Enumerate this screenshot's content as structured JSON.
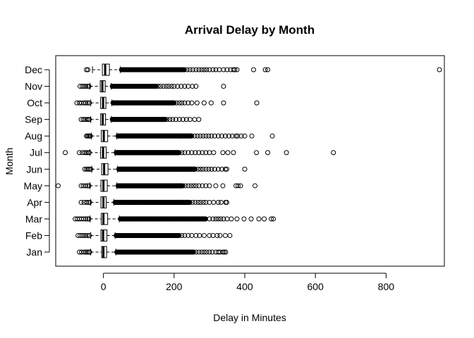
{
  "chart_data": {
    "type": "boxplot",
    "orientation": "horizontal",
    "title": "Arrival Delay by Month",
    "xlabel": "Delay in Minutes",
    "ylabel": "Month",
    "xlim": [
      -135,
      965
    ],
    "xticks": [
      0,
      200,
      400,
      600,
      800
    ],
    "grid": false,
    "legend": "none",
    "categories": [
      "Jan",
      "Feb",
      "Mar",
      "Apr",
      "May",
      "Jun",
      "Jul",
      "Aug",
      "Sep",
      "Oct",
      "Nov",
      "Dec"
    ],
    "boxes": [
      {
        "q1": -5,
        "median": 0,
        "q3": 9,
        "whisker_low": -36,
        "whisker_high": 35,
        "outliers_low": [
          -68,
          -62,
          -55,
          -50,
          -46,
          -42,
          -39
        ],
        "dense_high_end": 255,
        "outliers_high": [
          262,
          270,
          278,
          285,
          292,
          300,
          308,
          318,
          325,
          330,
          338,
          342,
          346
        ]
      },
      {
        "q1": -7,
        "median": -1,
        "q3": 10,
        "whisker_low": -36,
        "whisker_high": 33,
        "outliers_low": [
          -72,
          -66,
          -60,
          -55,
          -50,
          -45,
          -40
        ],
        "dense_high_end": 215,
        "outliers_high": [
          222,
          230,
          240,
          250,
          262,
          272,
          285,
          300,
          310,
          322,
          330,
          345,
          358
        ]
      },
      {
        "q1": -6,
        "median": 0,
        "q3": 12,
        "whisker_low": -38,
        "whisker_high": 45,
        "outliers_low": [
          -80,
          -74,
          -68,
          -62,
          -56,
          -50,
          -45,
          -41
        ],
        "dense_high_end": 290,
        "outliers_high": [
          300,
          310,
          318,
          325,
          332,
          340,
          350,
          362,
          378,
          398,
          418,
          440,
          455,
          475,
          481
        ]
      },
      {
        "q1": -7,
        "median": 0,
        "q3": 8,
        "whisker_low": -36,
        "whisker_high": 30,
        "outliers_low": [
          -63,
          -55,
          -48,
          -43,
          -39
        ],
        "dense_high_end": 245,
        "outliers_high": [
          252,
          260,
          268,
          275,
          283,
          290,
          300,
          312,
          325,
          333,
          346,
          349
        ]
      },
      {
        "q1": -7,
        "median": 0,
        "q3": 11,
        "whisker_low": -38,
        "whisker_high": 38,
        "outliers_low": [
          -128,
          -63,
          -57,
          -50,
          -45,
          -41
        ],
        "dense_high_end": 225,
        "outliers_high": [
          232,
          240,
          248,
          255,
          262,
          270,
          280,
          290,
          300,
          318,
          338,
          375,
          381,
          388,
          429
        ]
      },
      {
        "q1": -5,
        "median": 2,
        "q3": 13,
        "whisker_low": -33,
        "whisker_high": 40,
        "outliers_low": [
          -53,
          -48,
          -44,
          -40,
          -36
        ],
        "dense_high_end": 260,
        "outliers_high": [
          268,
          275,
          282,
          290,
          298,
          306,
          315,
          325,
          335,
          345,
          349,
          400
        ]
      },
      {
        "q1": -8,
        "median": -1,
        "q3": 8,
        "whisker_low": -38,
        "whisker_high": 33,
        "outliers_low": [
          -108,
          -68,
          -60,
          -53,
          -48,
          -44,
          -40
        ],
        "dense_high_end": 215,
        "outliers_high": [
          222,
          230,
          240,
          250,
          260,
          270,
          280,
          290,
          300,
          312,
          338,
          352,
          368,
          433,
          465,
          518,
          651
        ]
      },
      {
        "q1": -6,
        "median": 1,
        "q3": 12,
        "whisker_low": -34,
        "whisker_high": 38,
        "outliers_low": [
          -48,
          -45,
          -42,
          -39,
          -37
        ],
        "dense_high_end": 250,
        "outliers_high": [
          258,
          266,
          274,
          282,
          290,
          298,
          306,
          315,
          325,
          335,
          345,
          355,
          365,
          375,
          380,
          390,
          400,
          420,
          478
        ]
      },
      {
        "q1": -8,
        "median": -2,
        "q3": 6,
        "whisker_low": -36,
        "whisker_high": 22,
        "outliers_low": [
          -63,
          -57,
          -52,
          -47,
          -43,
          -40
        ],
        "dense_high_end": 175,
        "outliers_high": [
          180,
          188,
          196,
          205,
          215,
          225,
          235,
          245,
          258,
          270
        ]
      },
      {
        "q1": -8,
        "median": -1,
        "q3": 7,
        "whisker_low": -36,
        "whisker_high": 24,
        "outliers_low": [
          -75,
          -68,
          -62,
          -55,
          -50,
          -45,
          -40
        ],
        "dense_high_end": 200,
        "outliers_high": [
          207,
          215,
          222,
          230,
          240,
          250,
          265,
          285,
          305,
          340,
          434
        ]
      },
      {
        "q1": -9,
        "median": -3,
        "q3": 5,
        "whisker_low": -38,
        "whisker_high": 22,
        "outliers_low": [
          -66,
          -60,
          -55,
          -50,
          -45,
          -41
        ],
        "dense_high_end": 150,
        "outliers_high": [
          155,
          162,
          170,
          178,
          185,
          193,
          200,
          210,
          220,
          230,
          240,
          252,
          262,
          340
        ]
      },
      {
        "q1": -3,
        "median": 5,
        "q3": 17,
        "whisker_low": -31,
        "whisker_high": 48,
        "outliers_low": [
          -48,
          -44
        ],
        "dense_high_end": 230,
        "outliers_high": [
          237,
          245,
          253,
          262,
          270,
          278,
          285,
          292,
          300,
          310,
          318,
          328,
          340,
          350,
          360,
          368,
          372,
          378,
          425,
          458,
          465,
          951
        ]
      }
    ]
  }
}
